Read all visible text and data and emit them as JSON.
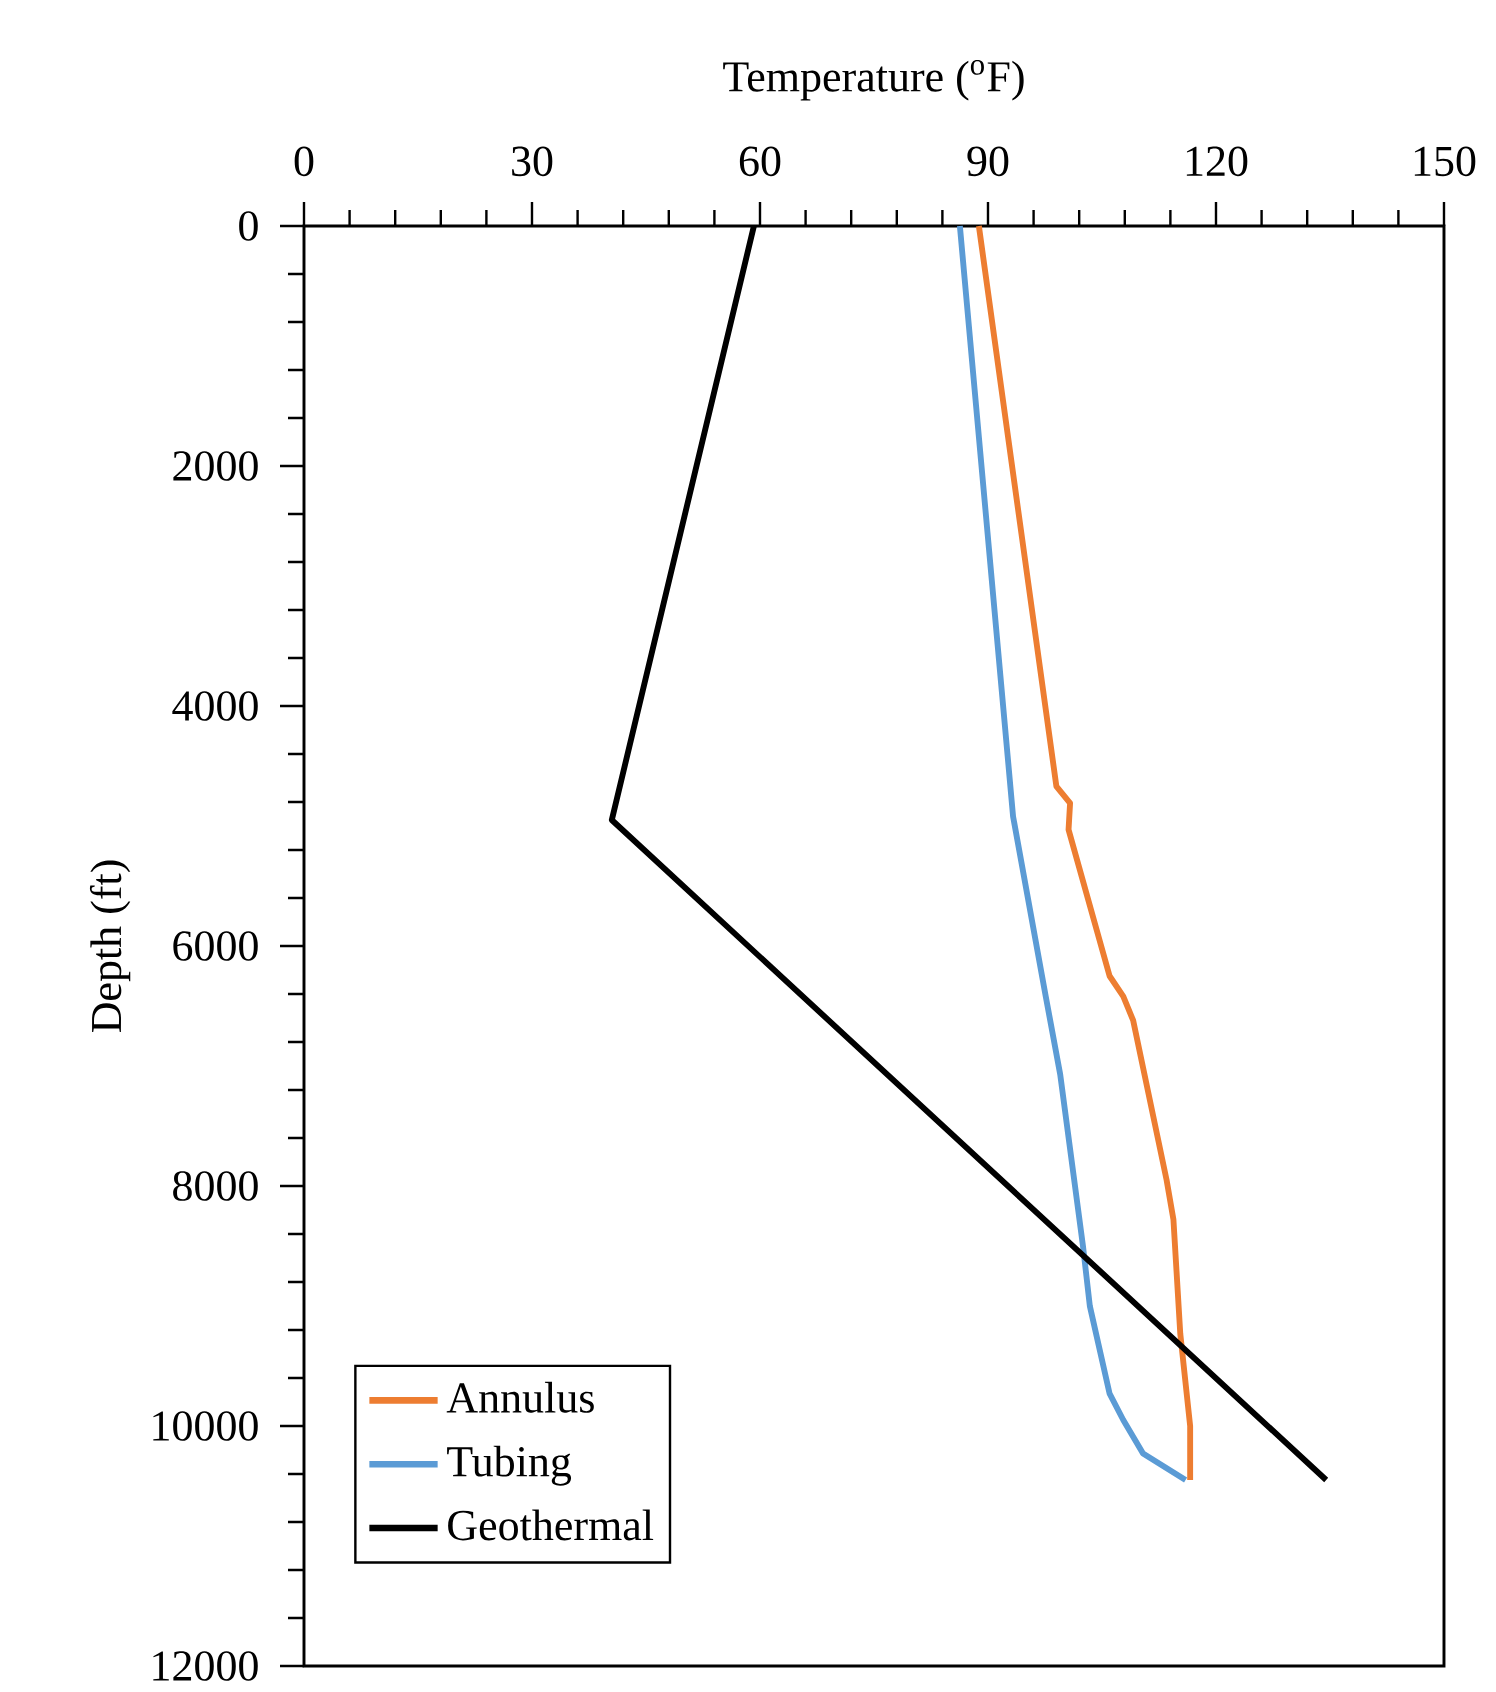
{
  "chart_data": {
    "type": "line",
    "xlabel": "Temperature ($^{o}$F)",
    "ylabel": "Depth (ft)",
    "xlim": [
      0,
      150
    ],
    "xticks": [
      0,
      30,
      60,
      90,
      120,
      150
    ],
    "ylim": [
      12000,
      0
    ],
    "yticks": [
      0,
      2000,
      4000,
      6000,
      8000,
      10000,
      12000
    ],
    "legend": "bottom left",
    "series": [
      {
        "name": "Annulus",
        "color": "#ed7d31",
        "x": [
          88.8,
          99.0,
          100.8,
          100.6,
          106.0,
          107.8,
          109.1,
          113.5,
          114.4,
          115.3,
          116.6,
          116.6
        ],
        "values": [
          0,
          4670,
          4810,
          5030,
          6250,
          6420,
          6620,
          7950,
          8280,
          9230,
          10000,
          10450
        ]
      },
      {
        "name": "Tubing",
        "color": "#5b9bd5",
        "x": [
          86.3,
          93.3,
          97.6,
          99.5,
          102.5,
          103.4,
          106.0,
          107.8,
          110.4,
          116.0
        ],
        "values": [
          0,
          4920,
          6420,
          7070,
          8500,
          9000,
          9730,
          9950,
          10230,
          10450
        ]
      },
      {
        "name": "Geothermal",
        "color": "#000000",
        "x": [
          59.2,
          40.5,
          134.5
        ],
        "values": [
          0,
          4950,
          10450
        ]
      }
    ]
  }
}
